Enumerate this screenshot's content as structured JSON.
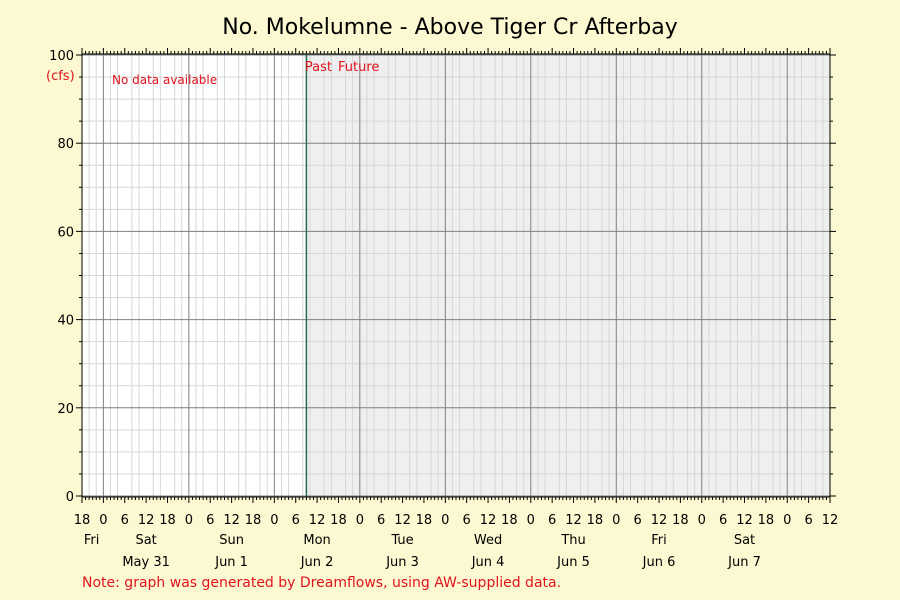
{
  "chart_data": {
    "type": "line",
    "title": "No. Mokelumne - Above Tiger Cr Afterbay",
    "y_unit_label": "(cfs)",
    "ylim": [
      0,
      100
    ],
    "y_ticks": [
      0,
      20,
      40,
      60,
      80,
      100
    ],
    "x_hour_ticks": [
      "18",
      "0",
      "6",
      "12",
      "18",
      "0",
      "6",
      "12",
      "18",
      "0",
      "6",
      "12",
      "18",
      "0",
      "6",
      "12",
      "18",
      "0",
      "6",
      "12",
      "18",
      "0",
      "6",
      "12",
      "18",
      "0",
      "6",
      "12",
      "18",
      "0",
      "6",
      "12",
      "18",
      "0",
      "6",
      "12"
    ],
    "x_day_labels": [
      "Fri",
      "Sat",
      "Sun",
      "Mon",
      "Tue",
      "Wed",
      "Thu",
      "Fri",
      "Sat"
    ],
    "x_date_labels": [
      "May 31",
      "Jun 1",
      "Jun 2",
      "Jun 3",
      "Jun 4",
      "Jun 5",
      "Jun 6",
      "Jun 7"
    ],
    "series": [],
    "no_data_text": "No data available",
    "past_label": "Past",
    "future_label": "Future",
    "note": "Note: graph was generated by Dreamflows, using AW-supplied data.",
    "grid": true,
    "colors": {
      "background": "#fbf8d2",
      "plot": "#ffffff",
      "future_shade": "#efefef",
      "major_grid": "#808080",
      "minor_grid": "#d6d6d6",
      "now_line": "#1f6b4a",
      "red": "#e0141e"
    }
  }
}
